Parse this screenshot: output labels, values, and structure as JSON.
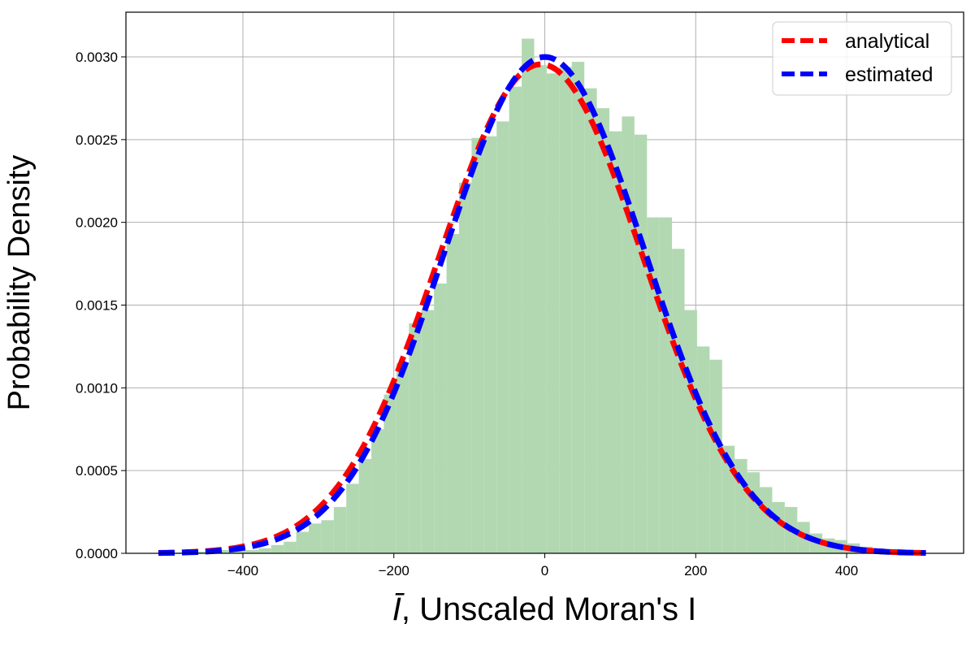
{
  "chart_data": {
    "type": "bar",
    "title": "",
    "xlabel": "Unscaled Moran's I",
    "xlabel_symbol": "Ī",
    "ylabel": "Probability Density",
    "xlim": [
      -555,
      555
    ],
    "ylim": [
      0,
      0.00327
    ],
    "x_ticks": [
      -400,
      -200,
      0,
      200,
      400
    ],
    "x_tick_labels": [
      "−400",
      "−200",
      "0",
      "200",
      "400"
    ],
    "y_ticks": [
      0,
      0.0005,
      0.001,
      0.0015,
      0.002,
      0.0025,
      0.003
    ],
    "y_tick_labels": [
      "0.0000",
      "0.0005",
      "0.0010",
      "0.0015",
      "0.0020",
      "0.0025",
      "0.0030"
    ],
    "grid": true,
    "legend_placement": "top-right",
    "histogram": {
      "color": "#b2d8b2",
      "bin_edges": [
        -512,
        -495.4,
        -478.8,
        -462.2,
        -445.6,
        -429,
        -412.4,
        -395.8,
        -379.2,
        -362.6,
        -346,
        -329.4,
        -312.8,
        -296.2,
        -279.6,
        -263,
        -246.4,
        -229.8,
        -213.2,
        -196.6,
        -180,
        -163.4,
        -146.8,
        -130.2,
        -113.6,
        -97,
        -80.4,
        -63.8,
        -47.2,
        -30.6,
        -14,
        2.6,
        19.2,
        35.8,
        52.4,
        69,
        85.6,
        102.2,
        118.8,
        135.4,
        152,
        168.6,
        185.2,
        201.8,
        218.4,
        235,
        251.6,
        268.2,
        284.8,
        301.4,
        318,
        334.6,
        351.2,
        367.8,
        384.4,
        401,
        417.6,
        434.2,
        450.8,
        467.4,
        484,
        500.6
      ],
      "densities": [
        1e-05,
        5e-06,
        1e-05,
        1e-05,
        1e-05,
        2e-05,
        2e-05,
        2e-05,
        3e-05,
        5e-05,
        7e-05,
        0.00013,
        0.00018,
        0.0002,
        0.00028,
        0.00042,
        0.00057,
        0.00075,
        0.00096,
        0.00115,
        0.00139,
        0.00147,
        0.00163,
        0.00193,
        0.00224,
        0.00251,
        0.00252,
        0.00261,
        0.00282,
        0.00311,
        0.00295,
        0.0029,
        0.00294,
        0.00297,
        0.00281,
        0.00269,
        0.00255,
        0.00264,
        0.00253,
        0.00203,
        0.00203,
        0.00184,
        0.00147,
        0.00125,
        0.00117,
        0.00065,
        0.00057,
        0.00049,
        0.0004,
        0.00031,
        0.00028,
        0.00019,
        0.00012,
        9e-05,
        8e-05,
        6e-05,
        4e-05,
        3e-05,
        2e-05,
        2e-05,
        1e-05
      ]
    },
    "series": [
      {
        "name": "analytical",
        "color": "#ff0000",
        "distribution": "normal",
        "mean": -5,
        "sd": 135
      },
      {
        "name": "estimated",
        "color": "#0000ff",
        "distribution": "normal",
        "mean": 0,
        "sd": 133
      }
    ],
    "curve_x_range": [
      -512,
      505
    ]
  }
}
